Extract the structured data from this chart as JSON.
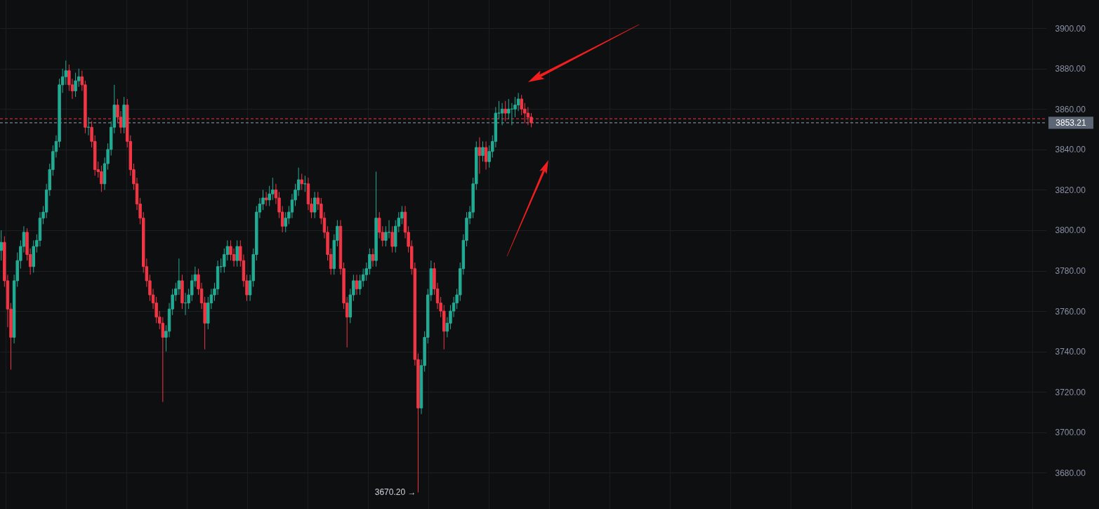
{
  "chart_data": {
    "type": "candlestick",
    "categories": [
      null,
      null,
      null,
      null,
      null,
      null,
      null,
      null,
      null,
      null,
      null,
      null,
      null,
      null,
      null,
      null,
      null,
      null,
      null,
      null,
      null,
      null,
      null,
      null,
      null,
      null,
      null,
      null,
      null,
      null,
      null,
      null,
      null,
      null,
      null,
      null,
      null,
      null,
      null,
      null,
      null,
      null,
      null,
      null,
      null,
      null,
      null,
      null,
      null,
      null,
      null,
      null,
      null,
      null,
      null,
      null,
      null,
      null,
      null,
      null,
      null,
      null,
      null,
      null,
      null,
      null,
      null,
      null,
      null,
      null,
      null,
      null,
      null,
      null,
      null,
      null,
      null,
      null,
      null,
      null,
      null,
      null,
      null,
      null,
      null,
      null,
      null,
      null,
      null,
      null,
      null,
      null,
      null,
      null,
      null,
      null,
      null,
      null,
      null,
      null,
      null,
      null,
      null,
      null,
      null,
      null,
      null,
      null,
      null,
      null,
      null,
      null,
      null,
      null,
      null,
      null,
      null,
      null,
      null,
      null,
      null,
      null,
      null,
      null,
      null,
      null,
      null,
      null,
      null,
      null,
      null,
      null,
      null,
      null,
      null,
      null,
      null,
      null,
      null,
      null,
      null,
      null,
      null,
      null,
      null,
      null,
      null,
      null,
      null,
      null,
      null,
      null,
      null,
      null,
      null,
      null,
      null,
      null,
      null,
      null,
      null,
      null,
      null,
      null,
      null,
      null,
      null,
      null,
      null,
      null,
      null,
      null,
      null,
      null,
      null,
      null,
      null,
      null,
      null,
      null,
      null,
      null,
      null,
      null,
      null,
      null,
      null,
      null,
      null,
      null,
      null,
      null,
      null,
      null,
      null,
      null,
      null,
      null,
      null,
      null,
      null,
      null,
      null,
      null,
      null,
      null,
      null,
      null,
      null,
      null,
      null,
      null,
      null,
      null,
      null,
      null,
      null,
      null,
      null,
      null,
      null,
      null,
      null,
      null,
      null,
      null,
      null,
      null,
      null,
      null,
      null,
      null,
      null,
      null,
      null,
      null,
      null,
      null,
      null,
      null,
      null,
      null,
      null,
      null,
      null,
      null,
      null,
      null,
      null,
      null,
      null,
      null,
      null,
      null,
      null,
      null,
      null,
      null,
      null,
      null,
      null,
      null,
      null,
      null,
      null,
      null,
      null,
      null,
      null,
      null,
      null,
      null,
      null,
      null,
      null,
      null,
      null,
      null,
      null,
      null,
      null,
      null,
      null,
      null,
      null,
      null,
      null,
      null,
      null,
      null,
      null,
      null,
      null,
      null,
      null,
      null,
      null,
      null,
      null,
      null,
      null,
      null,
      null,
      null,
      null,
      null,
      null,
      null,
      null,
      null,
      null,
      null,
      null,
      null,
      null,
      null,
      null,
      null,
      null,
      null,
      null,
      null,
      null,
      null
    ],
    "ohlc": [
      [
        3790,
        3800,
        3785,
        3794
      ],
      [
        3794,
        3797,
        3772,
        3775
      ],
      [
        3775,
        3778,
        3752,
        3761
      ],
      [
        3761,
        3764,
        3731,
        3747
      ],
      [
        3747,
        3778,
        3744,
        3775
      ],
      [
        3775,
        3789,
        3772,
        3785
      ],
      [
        3785,
        3795,
        3781,
        3792
      ],
      [
        3792,
        3802,
        3789,
        3799
      ],
      [
        3799,
        3801,
        3785,
        3788
      ],
      [
        3788,
        3791,
        3778,
        3782
      ],
      [
        3782,
        3795,
        3779,
        3792
      ],
      [
        3792,
        3798,
        3789,
        3795
      ],
      [
        3795,
        3809,
        3792,
        3806
      ],
      [
        3806,
        3812,
        3803,
        3809
      ],
      [
        3809,
        3823,
        3806,
        3820
      ],
      [
        3820,
        3833,
        3817,
        3830
      ],
      [
        3830,
        3842,
        3827,
        3839
      ],
      [
        3839,
        3847,
        3836,
        3844
      ],
      [
        3844,
        3875,
        3841,
        3872
      ],
      [
        3872,
        3880,
        3868,
        3876
      ],
      [
        3876,
        3884,
        3872,
        3879
      ],
      [
        3879,
        3882,
        3869,
        3872
      ],
      [
        3872,
        3875,
        3865,
        3869
      ],
      [
        3869,
        3878,
        3866,
        3874
      ],
      [
        3874,
        3880,
        3871,
        3876
      ],
      [
        3876,
        3879,
        3869,
        3872
      ],
      [
        3872,
        3874,
        3848,
        3851
      ],
      [
        3851,
        3856,
        3847,
        3851
      ],
      [
        3851,
        3854,
        3841,
        3844
      ],
      [
        3844,
        3847,
        3827,
        3830
      ],
      [
        3830,
        3834,
        3826,
        3829
      ],
      [
        3829,
        3832,
        3819,
        3823
      ],
      [
        3823,
        3836,
        3820,
        3833
      ],
      [
        3833,
        3843,
        3830,
        3840
      ],
      [
        3840,
        3854,
        3837,
        3851
      ],
      [
        3851,
        3872,
        3848,
        3862
      ],
      [
        3862,
        3865,
        3853,
        3856
      ],
      [
        3856,
        3859,
        3848,
        3851
      ],
      [
        3851,
        3866,
        3848,
        3862
      ],
      [
        3862,
        3865,
        3841,
        3844
      ],
      [
        3844,
        3847,
        3827,
        3830
      ],
      [
        3830,
        3833,
        3820,
        3823
      ],
      [
        3823,
        3826,
        3810,
        3813
      ],
      [
        3813,
        3816,
        3803,
        3806
      ],
      [
        3806,
        3809,
        3779,
        3782
      ],
      [
        3782,
        3786,
        3772,
        3775
      ],
      [
        3775,
        3778,
        3765,
        3768
      ],
      [
        3768,
        3771,
        3761,
        3764
      ],
      [
        3764,
        3767,
        3754,
        3757
      ],
      [
        3757,
        3760,
        3751,
        3754
      ],
      [
        3754,
        3757,
        3715,
        3747
      ],
      [
        3747,
        3753,
        3740,
        3750
      ],
      [
        3750,
        3764,
        3747,
        3761
      ],
      [
        3761,
        3771,
        3758,
        3768
      ],
      [
        3768,
        3774,
        3765,
        3771
      ],
      [
        3771,
        3786,
        3768,
        3775
      ],
      [
        3775,
        3778,
        3761,
        3764
      ],
      [
        3764,
        3769,
        3758,
        3764
      ],
      [
        3764,
        3771,
        3761,
        3768
      ],
      [
        3768,
        3778,
        3765,
        3775
      ],
      [
        3775,
        3782,
        3772,
        3778
      ],
      [
        3778,
        3781,
        3768,
        3771
      ],
      [
        3771,
        3774,
        3761,
        3764
      ],
      [
        3764,
        3767,
        3741,
        3754
      ],
      [
        3754,
        3767,
        3751,
        3764
      ],
      [
        3764,
        3771,
        3761,
        3768
      ],
      [
        3768,
        3774,
        3765,
        3771
      ],
      [
        3771,
        3785,
        3768,
        3782
      ],
      [
        3782,
        3786,
        3779,
        3782
      ],
      [
        3782,
        3791,
        3779,
        3788
      ],
      [
        3788,
        3795,
        3785,
        3792
      ],
      [
        3792,
        3795,
        3785,
        3788
      ],
      [
        3788,
        3791,
        3782,
        3785
      ],
      [
        3785,
        3795,
        3782,
        3792
      ],
      [
        3792,
        3795,
        3782,
        3785
      ],
      [
        3785,
        3788,
        3772,
        3775
      ],
      [
        3775,
        3778,
        3765,
        3768
      ],
      [
        3768,
        3778,
        3765,
        3775
      ],
      [
        3775,
        3791,
        3772,
        3788
      ],
      [
        3788,
        3812,
        3785,
        3809
      ],
      [
        3809,
        3816,
        3806,
        3813
      ],
      [
        3813,
        3820,
        3810,
        3816
      ],
      [
        3816,
        3819,
        3812,
        3815
      ],
      [
        3815,
        3822,
        3812,
        3818
      ],
      [
        3818,
        3826,
        3815,
        3820
      ],
      [
        3820,
        3823,
        3813,
        3816
      ],
      [
        3816,
        3819,
        3806,
        3809
      ],
      [
        3809,
        3812,
        3799,
        3802
      ],
      [
        3802,
        3809,
        3799,
        3806
      ],
      [
        3806,
        3812,
        3803,
        3809
      ],
      [
        3809,
        3818,
        3806,
        3815
      ],
      [
        3815,
        3823,
        3812,
        3820
      ],
      [
        3820,
        3831,
        3817,
        3825
      ],
      [
        3825,
        3828,
        3820,
        3823
      ],
      [
        3823,
        3827,
        3819,
        3823
      ],
      [
        3823,
        3826,
        3810,
        3813
      ],
      [
        3813,
        3816,
        3806,
        3809
      ],
      [
        3809,
        3819,
        3806,
        3816
      ],
      [
        3816,
        3819,
        3810,
        3813
      ],
      [
        3813,
        3816,
        3803,
        3806
      ],
      [
        3806,
        3809,
        3796,
        3799
      ],
      [
        3799,
        3802,
        3785,
        3788
      ],
      [
        3788,
        3791,
        3778,
        3781
      ],
      [
        3781,
        3798,
        3778,
        3795
      ],
      [
        3795,
        3805,
        3792,
        3802
      ],
      [
        3802,
        3805,
        3778,
        3781
      ],
      [
        3781,
        3784,
        3761,
        3764
      ],
      [
        3764,
        3767,
        3742,
        3757
      ],
      [
        3757,
        3771,
        3754,
        3768
      ],
      [
        3768,
        3778,
        3765,
        3775
      ],
      [
        3775,
        3778,
        3768,
        3771
      ],
      [
        3771,
        3778,
        3768,
        3775
      ],
      [
        3775,
        3781,
        3772,
        3778
      ],
      [
        3778,
        3784,
        3775,
        3781
      ],
      [
        3781,
        3791,
        3778,
        3788
      ],
      [
        3788,
        3791,
        3782,
        3785
      ],
      [
        3785,
        3829,
        3782,
        3806
      ],
      [
        3806,
        3809,
        3796,
        3799
      ],
      [
        3799,
        3802,
        3792,
        3795
      ],
      [
        3795,
        3802,
        3792,
        3799
      ],
      [
        3799,
        3805,
        3796,
        3799
      ],
      [
        3799,
        3802,
        3789,
        3792
      ],
      [
        3792,
        3805,
        3789,
        3802
      ],
      [
        3802,
        3809,
        3799,
        3806
      ],
      [
        3806,
        3812,
        3803,
        3809
      ],
      [
        3809,
        3812,
        3796,
        3799
      ],
      [
        3799,
        3802,
        3789,
        3792
      ],
      [
        3792,
        3795,
        3778,
        3781
      ],
      [
        3781,
        3784,
        3733,
        3736
      ],
      [
        3736,
        3739,
        3670.2,
        3712
      ],
      [
        3712,
        3736,
        3709,
        3733
      ],
      [
        3733,
        3750,
        3730,
        3747
      ],
      [
        3747,
        3771,
        3744,
        3768
      ],
      [
        3768,
        3785,
        3765,
        3781
      ],
      [
        3781,
        3784,
        3768,
        3771
      ],
      [
        3771,
        3774,
        3761,
        3764
      ],
      [
        3764,
        3767,
        3757,
        3760
      ],
      [
        3760,
        3763,
        3741,
        3750
      ],
      [
        3750,
        3757,
        3747,
        3754
      ],
      [
        3754,
        3763,
        3751,
        3760
      ],
      [
        3760,
        3767,
        3757,
        3764
      ],
      [
        3764,
        3771,
        3761,
        3768
      ],
      [
        3768,
        3784,
        3765,
        3781
      ],
      [
        3781,
        3798,
        3778,
        3795
      ],
      [
        3795,
        3809,
        3792,
        3806
      ],
      [
        3806,
        3812,
        3803,
        3809
      ],
      [
        3809,
        3826,
        3806,
        3823
      ],
      [
        3823,
        3844,
        3820,
        3841
      ],
      [
        3841,
        3846,
        3828,
        3837
      ],
      [
        3837,
        3844,
        3834,
        3841
      ],
      [
        3841,
        3844,
        3830,
        3834
      ],
      [
        3834,
        3842,
        3831,
        3839
      ],
      [
        3839,
        3847,
        3836,
        3844
      ],
      [
        3844,
        3861,
        3841,
        3858
      ],
      [
        3858,
        3864,
        3855,
        3858
      ],
      [
        3858,
        3863,
        3852,
        3860
      ],
      [
        3860,
        3864,
        3854,
        3858
      ],
      [
        3858,
        3865,
        3855,
        3860
      ],
      [
        3860,
        3863,
        3852,
        3860
      ],
      [
        3860,
        3866,
        3856,
        3862
      ],
      [
        3862,
        3868,
        3859,
        3865
      ],
      [
        3865,
        3867,
        3857,
        3860
      ],
      [
        3860,
        3863,
        3853,
        3858
      ],
      [
        3858,
        3861,
        3852,
        3856
      ],
      [
        3856,
        3858,
        3851,
        3853.21
      ],
      null,
      null,
      null,
      null,
      null,
      null,
      null,
      null,
      null,
      null,
      null,
      null,
      null,
      null,
      null,
      null,
      null,
      null,
      null,
      null,
      null,
      null,
      null,
      null,
      null,
      null,
      null,
      null,
      null,
      null,
      null,
      null,
      null,
      null,
      null,
      null,
      null,
      null,
      null,
      null,
      null,
      null,
      null,
      null,
      null,
      null,
      null,
      null,
      null,
      null,
      null,
      null,
      null,
      null,
      null,
      null,
      null,
      null,
      null,
      null,
      null,
      null,
      null,
      null,
      null,
      null,
      null,
      null,
      null,
      null,
      null,
      null,
      null,
      null,
      null,
      null,
      null,
      null,
      null,
      null,
      null,
      null,
      null,
      null,
      null,
      null,
      null,
      null,
      null,
      null,
      null,
      null,
      null,
      null,
      null,
      null,
      null,
      null,
      null,
      null,
      null,
      null,
      null,
      null,
      null,
      null,
      null,
      null,
      null,
      null,
      null,
      null,
      null,
      null,
      null,
      null,
      null,
      null,
      null,
      null,
      null,
      null,
      null,
      null,
      null,
      null,
      null,
      null,
      null,
      null,
      null,
      null,
      null,
      null,
      null,
      null,
      null,
      null,
      null,
      null,
      null,
      null,
      null,
      null,
      null,
      null,
      null,
      null,
      null,
      null,
      null,
      null,
      null,
      null,
      null,
      null,
      null,
      null,
      null
    ],
    "colors": [
      "#22ab94",
      "#f23645",
      "#f23645",
      "#f23645",
      "#22ab94",
      "#22ab94",
      "#22ab94",
      "#22ab94",
      "#f23645",
      "#f23645",
      "#22ab94",
      "#22ab94",
      "#22ab94",
      "#22ab94",
      "#22ab94",
      "#22ab94",
      "#22ab94",
      "#22ab94",
      "#22ab94",
      "#22ab94",
      "#22ab94",
      "#f23645",
      "#f23645",
      "#22ab94",
      "#22ab94",
      "#f23645",
      "#f23645",
      "#22ab94",
      "#f23645",
      "#f23645",
      "#f23645",
      "#f23645",
      "#22ab94",
      "#22ab94",
      "#22ab94",
      "#22ab94",
      "#f23645",
      "#f23645",
      "#22ab94",
      "#f23645",
      "#f23645",
      "#f23645",
      "#f23645",
      "#f23645",
      "#f23645",
      "#f23645",
      "#f23645",
      "#f23645",
      "#f23645",
      "#f23645",
      "#f23645",
      "#22ab94",
      "#22ab94",
      "#22ab94",
      "#22ab94",
      "#22ab94",
      "#f23645",
      "#22ab94",
      "#22ab94",
      "#22ab94",
      "#22ab94",
      "#f23645",
      "#f23645",
      "#f23645",
      "#22ab94",
      "#22ab94",
      "#22ab94",
      "#22ab94",
      "#22ab94",
      "#22ab94",
      "#22ab94",
      "#f23645",
      "#f23645",
      "#22ab94",
      "#f23645",
      "#f23645",
      "#f23645",
      "#22ab94",
      "#22ab94",
      "#22ab94",
      "#22ab94",
      "#22ab94",
      "#f23645",
      "#22ab94",
      "#22ab94",
      "#f23645",
      "#f23645",
      "#f23645",
      "#22ab94",
      "#22ab94",
      "#22ab94",
      "#22ab94",
      "#22ab94",
      "#f23645",
      "#22ab94",
      "#f23645",
      "#f23645",
      "#22ab94",
      "#f23645",
      "#f23645",
      "#f23645",
      "#f23645",
      "#f23645",
      "#22ab94",
      "#22ab94",
      "#f23645",
      "#f23645",
      "#f23645",
      "#22ab94",
      "#22ab94",
      "#f23645",
      "#22ab94",
      "#22ab94",
      "#22ab94",
      "#22ab94",
      "#f23645",
      "#22ab94",
      "#f23645",
      "#f23645",
      "#22ab94",
      "#22ab94",
      "#f23645",
      "#22ab94",
      "#22ab94",
      "#22ab94",
      "#f23645",
      "#f23645",
      "#f23645",
      "#f23645",
      "#f23645",
      "#22ab94",
      "#22ab94",
      "#22ab94",
      "#22ab94",
      "#f23645",
      "#f23645",
      "#f23645",
      "#f23645",
      "#22ab94",
      "#22ab94",
      "#22ab94",
      "#22ab94",
      "#22ab94",
      "#22ab94",
      "#22ab94",
      "#22ab94",
      "#22ab94",
      "#22ab94",
      "#f23645",
      "#22ab94",
      "#f23645",
      "#22ab94",
      "#22ab94",
      "#22ab94",
      "#22ab94",
      "#22ab94",
      "#f23645",
      "#22ab94",
      "#22ab94",
      "#22ab94",
      "#22ab94",
      "#f23645",
      "#f23645",
      "#f23645",
      "#f23645",
      null,
      null,
      null,
      null,
      null,
      null,
      null,
      null,
      null,
      null,
      null,
      null,
      null,
      null,
      null,
      null,
      null,
      null,
      null,
      null,
      null,
      null,
      null,
      null,
      null,
      null,
      null,
      null,
      null,
      null,
      null,
      null,
      null,
      null,
      null,
      null,
      null,
      null,
      null,
      null,
      null,
      null,
      null,
      null,
      null,
      null,
      null,
      null,
      null,
      null,
      null,
      null,
      null,
      null,
      null,
      null,
      null,
      null,
      null,
      null,
      null,
      null,
      null,
      null,
      null,
      null,
      null,
      null,
      null,
      null,
      null,
      null,
      null,
      null,
      null,
      null,
      null,
      null,
      null,
      null,
      null,
      null,
      null,
      null,
      null,
      null,
      null,
      null,
      null,
      null,
      null,
      null,
      null,
      null,
      null,
      null,
      null,
      null,
      null,
      null,
      null,
      null,
      null,
      null,
      null,
      null,
      null,
      null,
      null,
      null,
      null,
      null,
      null,
      null,
      null,
      null,
      null,
      null,
      null,
      null,
      null,
      null,
      null,
      null,
      null,
      null,
      null,
      null,
      null,
      null,
      null,
      null,
      null,
      null,
      null,
      null,
      null,
      null,
      null,
      null,
      null,
      null,
      null,
      null,
      null,
      null,
      null,
      null,
      null,
      null,
      null,
      null,
      null,
      null,
      null,
      null,
      null,
      null,
      null
    ],
    "ylim": [
      3662,
      3914
    ],
    "yticks": [
      {
        "value": 3680,
        "label": "3680.00"
      },
      {
        "value": 3700,
        "label": "3700.00"
      },
      {
        "value": 3720,
        "label": "3720.00"
      },
      {
        "value": 3740,
        "label": "3740.00"
      },
      {
        "value": 3760,
        "label": "3760.00"
      },
      {
        "value": 3780,
        "label": "3780.00"
      },
      {
        "value": 3800,
        "label": "3800.00"
      },
      {
        "value": 3820,
        "label": "3820.00"
      },
      {
        "value": 3840,
        "label": "3840.00"
      },
      {
        "value": 3860,
        "label": "3860.00"
      },
      {
        "value": 3880,
        "label": "3880.00"
      },
      {
        "value": 3900,
        "label": "3900.00"
      }
    ],
    "ref_lines": [
      {
        "axis": "y",
        "value": 3853.21,
        "label": "3853.21",
        "color": "#9aa0ad",
        "line_style": "dashed"
      },
      {
        "axis": "y",
        "value": 3855.2,
        "color": "#f23645",
        "line_style": "dashed"
      }
    ],
    "annotations": [
      "3670.20 →"
    ],
    "grid": true,
    "tick_labels": "y"
  }
}
